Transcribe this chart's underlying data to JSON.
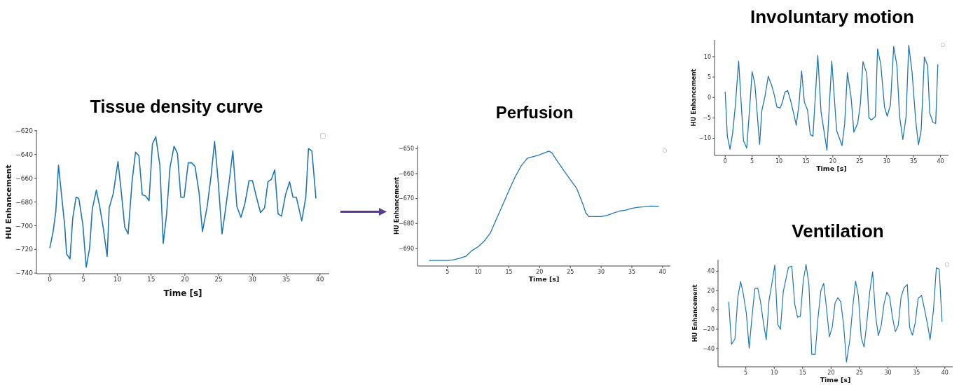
{
  "chart_data": [
    {
      "type": "line",
      "title": "Tissue density curve",
      "xlabel": "Time [s]",
      "ylabel": "HU Enhancement",
      "color": "#1f77b4",
      "xlim": [
        -1.97,
        41.37
      ],
      "ylim": [
        -740.5,
        -619.5
      ],
      "xticks": [
        0,
        5,
        10,
        15,
        20,
        25,
        30,
        35,
        40
      ],
      "yticks": [
        -740,
        -720,
        -700,
        -680,
        -660,
        -640,
        -620
      ],
      "x": [
        0,
        0.5,
        0.9,
        1.3,
        1.8,
        2.2,
        2.5,
        3.0,
        3.4,
        3.9,
        4.3,
        4.9,
        5.4,
        5.9,
        6.3,
        6.9,
        7.4,
        7.9,
        8.5,
        8.8,
        9.4,
        10.1,
        10.6,
        11.1,
        11.6,
        12.2,
        12.7,
        13.2,
        13.7,
        14.2,
        14.7,
        15.2,
        15.7,
        16.3,
        16.8,
        17.3,
        17.8,
        18.4,
        18.9,
        19.4,
        19.9,
        20.5,
        21.0,
        21.5,
        22.1,
        22.6,
        23.3,
        23.9,
        24.4,
        24.9,
        25.5,
        26.0,
        26.6,
        27.1,
        27.7,
        28.3,
        28.9,
        29.5,
        30.0,
        30.6,
        31.2,
        31.8,
        32.3,
        32.8,
        33.3,
        33.8,
        34.3,
        34.9,
        35.5,
        36.0,
        36.5,
        37.3,
        37.9,
        38.3,
        38.8,
        39.4
      ],
      "values": [
        -719,
        -705,
        -688,
        -649,
        -677,
        -699,
        -724,
        -728,
        -694,
        -676,
        -677,
        -699,
        -735,
        -719,
        -686,
        -670,
        -684,
        -701,
        -726,
        -685,
        -673,
        -646,
        -672,
        -701,
        -707,
        -662,
        -638,
        -641,
        -674,
        -675,
        -679,
        -631,
        -625,
        -649,
        -715,
        -690,
        -651,
        -633,
        -639,
        -676,
        -676,
        -647,
        -647,
        -650,
        -672,
        -705,
        -684,
        -657,
        -629,
        -660,
        -707,
        -687,
        -661,
        -637,
        -684,
        -693,
        -681,
        -662,
        -662,
        -676,
        -689,
        -685,
        -663,
        -661,
        -653,
        -690,
        -692,
        -674,
        -663,
        -676,
        -676,
        -696,
        -676,
        -635,
        -637,
        -677
      ]
    },
    {
      "type": "line",
      "title": "Perfusion",
      "xlabel": "Time [s]",
      "ylabel": "HU Enhancement",
      "color": "#1f77b4",
      "xlim": [
        0.13,
        41.27
      ],
      "ylim": [
        -697,
        -648.8
      ],
      "xticks": [
        5,
        10,
        15,
        20,
        25,
        30,
        35,
        40
      ],
      "yticks": [
        -690,
        -680,
        -670,
        -660,
        -650
      ],
      "x": [
        2,
        5,
        6,
        7,
        8,
        9,
        10,
        11,
        12,
        13,
        14,
        15,
        16,
        17,
        18,
        20,
        21.5,
        22,
        23,
        24,
        25,
        26,
        27,
        27.5,
        28,
        29,
        30,
        31,
        32,
        33,
        34,
        35,
        36,
        37,
        38,
        39.4
      ],
      "values": [
        -694.8,
        -694.8,
        -694.5,
        -693.9,
        -693.1,
        -690.8,
        -689.3,
        -687,
        -683.7,
        -678,
        -672.5,
        -666.8,
        -661.4,
        -656.9,
        -653.9,
        -652.5,
        -651,
        -651.7,
        -655.5,
        -659,
        -662.5,
        -665.8,
        -672,
        -675.7,
        -677.2,
        -677.2,
        -677.2,
        -676.7,
        -675.8,
        -675,
        -674.6,
        -673.9,
        -673.5,
        -673.3,
        -673,
        -673.1
      ]
    },
    {
      "type": "line",
      "title": "Involuntary motion",
      "xlabel": "Time [s]",
      "ylabel": "HU Enhancement",
      "color": "#1f77b4",
      "xlim": [
        -1.98,
        41.48
      ],
      "ylim": [
        -14.2,
        14.1
      ],
      "xticks": [
        0,
        5,
        10,
        15,
        20,
        25,
        30,
        35,
        40
      ],
      "yticks": [
        -10,
        -5,
        0,
        5,
        10
      ],
      "x": [
        0,
        0.4,
        0.9,
        1.4,
        1.9,
        2.5,
        3.4,
        4.0,
        4.5,
        5.0,
        5.5,
        6.4,
        6.8,
        7.4,
        8.0,
        8.7,
        9.1,
        9.6,
        10.2,
        10.6,
        11.1,
        11.6,
        12.2,
        12.7,
        13.2,
        13.7,
        14.2,
        14.7,
        15.3,
        15.8,
        16.3,
        17.2,
        17.8,
        18.9,
        19.8,
        20.7,
        21.7,
        22.2,
        22.7,
        23.4,
        23.9,
        24.6,
        25.1,
        25.6,
        26.3,
        26.7,
        27.2,
        27.9,
        28.3,
        28.9,
        29.6,
        30.1,
        30.7,
        31.3,
        31.9,
        32.4,
        33.0,
        33.6,
        34.1,
        34.7,
        35.4,
        35.9,
        36.4,
        37.0,
        37.6,
        38.0,
        38.6,
        39.1,
        39.5
      ],
      "values": [
        1.4,
        -9.5,
        -12.7,
        -8.6,
        -1.8,
        8.9,
        -10.6,
        -12.4,
        -3.5,
        6.3,
        3.5,
        -11.5,
        -3.3,
        0.3,
        5.2,
        2.7,
        0.7,
        -2.3,
        -2.6,
        -1.3,
        1.3,
        1.7,
        -1,
        -3.8,
        -6.8,
        -1.8,
        6.5,
        -1.1,
        -3.1,
        -9.1,
        -9.5,
        10.3,
        -3.5,
        -12.9,
        8.9,
        -8.1,
        -11.8,
        -6.4,
        6.1,
        -0.1,
        -8.5,
        -6.4,
        -1.8,
        8.8,
        5.8,
        -5,
        -5.5,
        -4.7,
        11.9,
        8.1,
        -2.4,
        -4.6,
        -1.8,
        12.5,
        7.8,
        -4.7,
        -10.3,
        -4.7,
        12.8,
        6.4,
        -5.8,
        -11.6,
        -8.1,
        9.9,
        7.8,
        -3.8,
        -6.1,
        -6.4,
        8.1
      ]
    },
    {
      "type": "line",
      "title": "Ventilation",
      "xlabel": "Time [s]",
      "ylabel": "HU Enhancement",
      "color": "#1f77b4",
      "xlim": [
        0.125,
        41.375
      ],
      "ylim": [
        -59,
        51.9
      ],
      "xticks": [
        5,
        10,
        15,
        20,
        25,
        30,
        35,
        40
      ],
      "yticks": [
        -40,
        -20,
        0,
        20,
        40
      ],
      "x": [
        2.0,
        2.5,
        3.1,
        3.6,
        4.1,
        4.6,
        5.1,
        5.6,
        6.1,
        6.6,
        7.1,
        7.6,
        8.1,
        8.6,
        9.1,
        9.6,
        10.1,
        10.6,
        11.1,
        11.6,
        12.5,
        13.1,
        13.6,
        14.1,
        14.6,
        15.1,
        15.6,
        16.1,
        16.6,
        17.2,
        17.7,
        18.2,
        18.7,
        19.2,
        19.7,
        20.2,
        20.7,
        21.2,
        21.7,
        22.2,
        22.7,
        23.3,
        23.8,
        24.3,
        24.8,
        25.3,
        25.8,
        26.3,
        26.8,
        27.3,
        27.8,
        28.3,
        28.8,
        29.3,
        29.8,
        30.3,
        30.8,
        31.3,
        31.8,
        32.3,
        32.8,
        33.4,
        33.8,
        34.3,
        34.8,
        35.3,
        35.9,
        36.4,
        37.0,
        37.4,
        38.0,
        38.5,
        39.0,
        39.5
      ],
      "values": [
        8.3,
        -35.7,
        -30.2,
        13.1,
        29.3,
        15.5,
        -3.6,
        -39.8,
        -7.1,
        21.9,
        22.6,
        8.3,
        -13.1,
        -31,
        10.2,
        27.4,
        46.4,
        -14.8,
        -20.2,
        19,
        44,
        45.2,
        6.4,
        -7.6,
        -6.7,
        29.8,
        46.9,
        26.2,
        -46,
        -46,
        -8.3,
        19.8,
        27.4,
        1.2,
        -27.9,
        -17.9,
        7.1,
        12.6,
        8.3,
        -15.5,
        -54,
        -31,
        2.4,
        29.8,
        14.3,
        -29,
        -38.6,
        -11.9,
        19,
        39.3,
        -4.8,
        -26.7,
        -16.7,
        6,
        18.3,
        13.1,
        -8.3,
        -22.6,
        -16.2,
        13.1,
        22.6,
        26.2,
        -18.3,
        -26.2,
        -13.1,
        11.9,
        15,
        1.2,
        -16.7,
        -31,
        0,
        43.6,
        42.1,
        -12.4
      ]
    }
  ]
}
